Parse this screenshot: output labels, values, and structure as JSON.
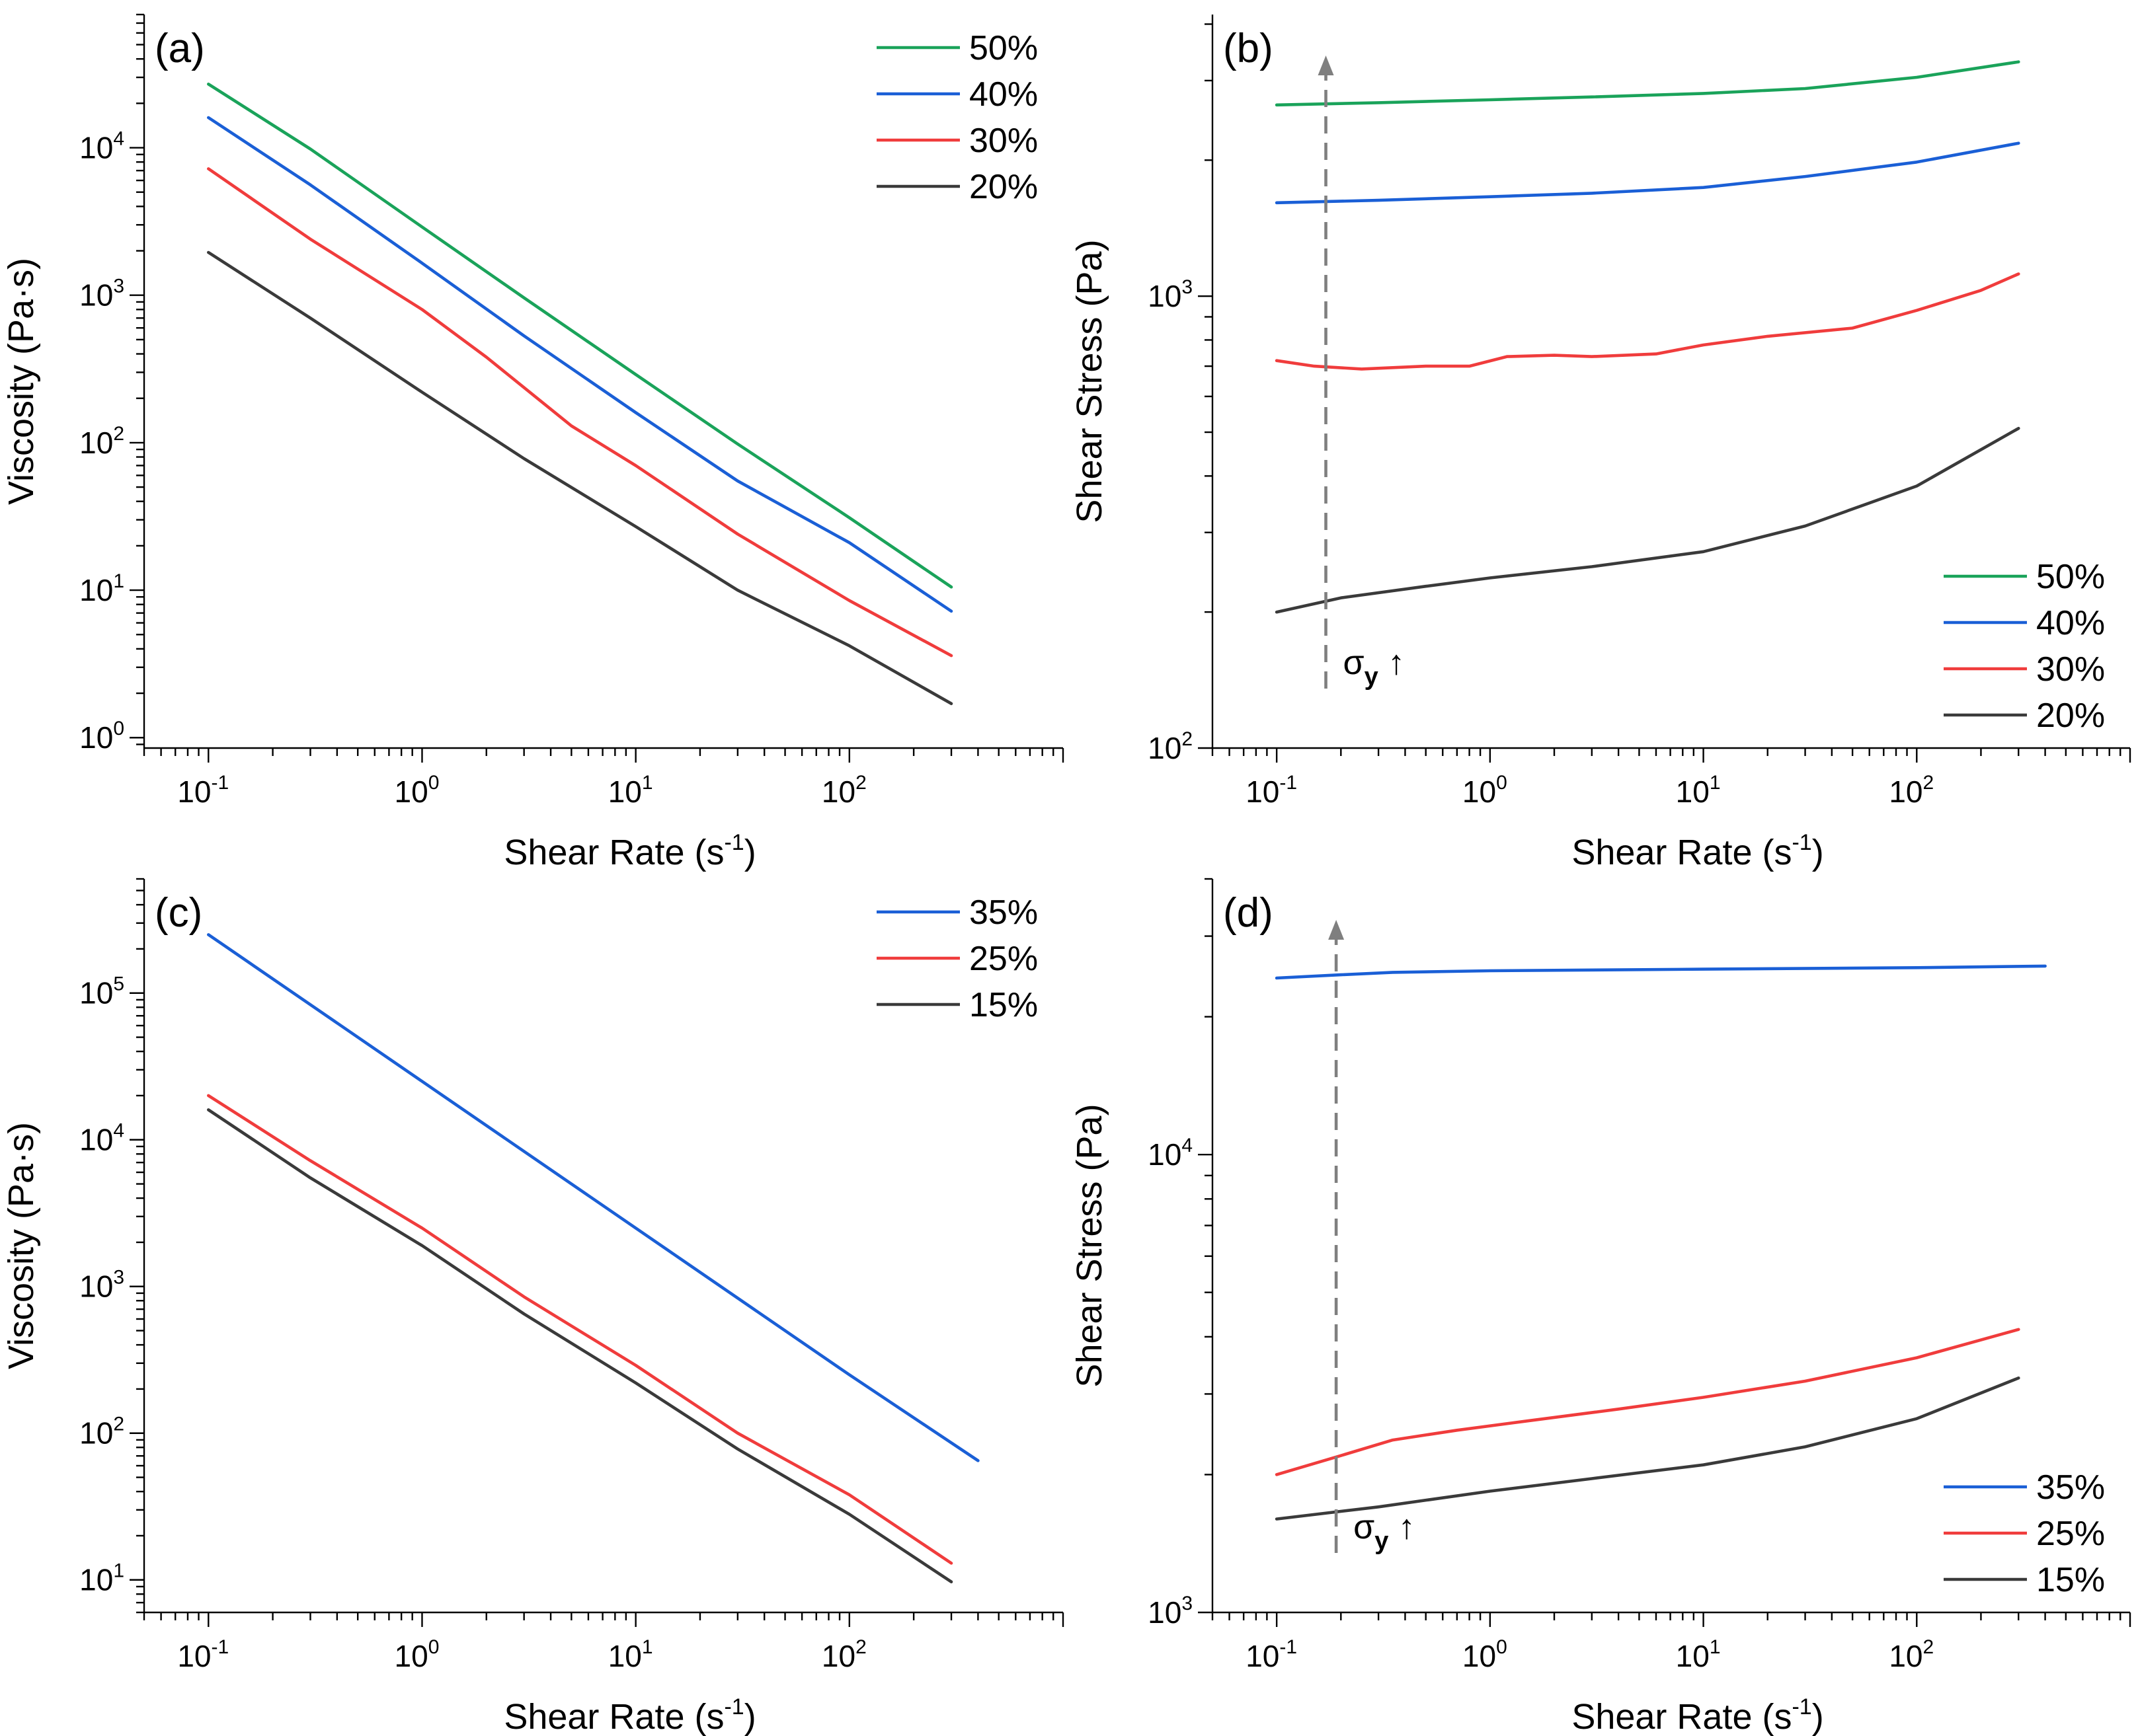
{
  "chart_data": [
    {
      "id": "a",
      "type": "line",
      "panel_label": "(a)",
      "xlabel": "Shear Rate (s",
      "xlabel_sup": "-1",
      "xlabel_tail": ")",
      "ylabel": "Viscosity (Pa·s)",
      "xscale": "log",
      "yscale": "log",
      "xlim": [
        0.05,
        1000
      ],
      "ylim": [
        0.85,
        80000
      ],
      "xticks": [
        {
          "base": "10",
          "exp": "-1",
          "value": 0.1
        },
        {
          "base": "10",
          "exp": "0",
          "value": 1
        },
        {
          "base": "10",
          "exp": "1",
          "value": 10
        },
        {
          "base": "10",
          "exp": "2",
          "value": 100
        }
      ],
      "yticks": [
        {
          "base": "10",
          "exp": "0",
          "value": 1
        },
        {
          "base": "10",
          "exp": "1",
          "value": 10
        },
        {
          "base": "10",
          "exp": "2",
          "value": 100
        },
        {
          "base": "10",
          "exp": "3",
          "value": 1000
        },
        {
          "base": "10",
          "exp": "4",
          "value": 10000
        }
      ],
      "legend_position": "top-right",
      "series": [
        {
          "name": "50%",
          "color": "#1aa35a",
          "x": [
            0.1,
            0.3,
            1,
            3,
            10,
            30,
            100,
            300
          ],
          "y": [
            27000,
            9800,
            2900,
            960,
            290,
            98,
            31,
            10.5
          ]
        },
        {
          "name": "40%",
          "color": "#1a5fd6",
          "x": [
            0.1,
            0.3,
            1,
            3,
            10,
            30,
            100,
            300
          ],
          "y": [
            16000,
            5600,
            1650,
            530,
            160,
            55,
            21,
            7.2
          ]
        },
        {
          "name": "30%",
          "color": "#f03c3c",
          "x": [
            0.1,
            0.3,
            1,
            2,
            5,
            10,
            30,
            100,
            300
          ],
          "y": [
            7200,
            2400,
            800,
            380,
            130,
            70,
            24,
            8.5,
            3.6
          ]
        },
        {
          "name": "20%",
          "color": "#3a3a3a",
          "x": [
            0.1,
            0.3,
            1,
            3,
            10,
            30,
            100,
            300
          ],
          "y": [
            1950,
            700,
            220,
            78,
            27,
            10,
            4.2,
            1.7
          ]
        }
      ]
    },
    {
      "id": "b",
      "type": "line",
      "panel_label": "(b)",
      "xlabel": "Shear Rate (s",
      "xlabel_sup": "-1",
      "xlabel_tail": ")",
      "ylabel": "Shear Stress (Pa)",
      "xscale": "log",
      "yscale": "log",
      "xlim": [
        0.05,
        1000
      ],
      "ylim": [
        100,
        4200
      ],
      "xticks": [
        {
          "base": "10",
          "exp": "-1",
          "value": 0.1
        },
        {
          "base": "10",
          "exp": "0",
          "value": 1
        },
        {
          "base": "10",
          "exp": "1",
          "value": 10
        },
        {
          "base": "10",
          "exp": "2",
          "value": 100
        }
      ],
      "yticks": [
        {
          "base": "10",
          "exp": "2",
          "value": 100
        },
        {
          "base": "10",
          "exp": "3",
          "value": 1000
        }
      ],
      "legend_position": "bottom-right",
      "annotation": {
        "symbol": "σ",
        "subscript": "y",
        "arrow": "↑",
        "x": 0.17
      },
      "series": [
        {
          "name": "50%",
          "color": "#1aa35a",
          "x": [
            0.1,
            0.3,
            1,
            3,
            10,
            30,
            100,
            300
          ],
          "y": [
            2650,
            2680,
            2720,
            2760,
            2810,
            2880,
            3050,
            3300
          ]
        },
        {
          "name": "40%",
          "color": "#1a5fd6",
          "x": [
            0.1,
            0.3,
            1,
            3,
            10,
            30,
            100,
            300
          ],
          "y": [
            1610,
            1630,
            1660,
            1690,
            1740,
            1840,
            1980,
            2180
          ]
        },
        {
          "name": "30%",
          "color": "#f03c3c",
          "x": [
            0.1,
            0.15,
            0.25,
            0.5,
            0.8,
            1.2,
            2,
            3,
            6,
            10,
            20,
            50,
            100,
            200,
            300
          ],
          "y": [
            720,
            700,
            690,
            700,
            700,
            735,
            740,
            735,
            745,
            780,
            815,
            850,
            930,
            1030,
            1120
          ]
        },
        {
          "name": "20%",
          "color": "#3a3a3a",
          "x": [
            0.1,
            0.2,
            0.5,
            1,
            3,
            10,
            30,
            100,
            300
          ],
          "y": [
            200,
            215,
            228,
            238,
            252,
            272,
            310,
            380,
            510
          ]
        }
      ]
    },
    {
      "id": "c",
      "type": "line",
      "panel_label": "(c)",
      "xlabel": "Shear Rate (s",
      "xlabel_sup": "-1",
      "xlabel_tail": ")",
      "ylabel": "Viscosity (Pa·s)",
      "xscale": "log",
      "yscale": "log",
      "xlim": [
        0.05,
        1000
      ],
      "ylim": [
        6,
        600000
      ],
      "xticks": [
        {
          "base": "10",
          "exp": "-1",
          "value": 0.1
        },
        {
          "base": "10",
          "exp": "0",
          "value": 1
        },
        {
          "base": "10",
          "exp": "1",
          "value": 10
        },
        {
          "base": "10",
          "exp": "2",
          "value": 100
        }
      ],
      "yticks": [
        {
          "base": "10",
          "exp": "1",
          "value": 10
        },
        {
          "base": "10",
          "exp": "2",
          "value": 100
        },
        {
          "base": "10",
          "exp": "3",
          "value": 1000
        },
        {
          "base": "10",
          "exp": "4",
          "value": 10000
        },
        {
          "base": "10",
          "exp": "5",
          "value": 100000
        }
      ],
      "legend_position": "top-right",
      "series": [
        {
          "name": "35%",
          "color": "#1a5fd6",
          "x": [
            0.1,
            1,
            10,
            100,
            400
          ],
          "y": [
            250000,
            25000,
            2500,
            250,
            65
          ]
        },
        {
          "name": "25%",
          "color": "#f03c3c",
          "x": [
            0.1,
            0.3,
            1,
            3,
            10,
            30,
            100,
            300
          ],
          "y": [
            20000,
            7200,
            2500,
            850,
            290,
            100,
            38,
            13
          ]
        },
        {
          "name": "15%",
          "color": "#3a3a3a",
          "x": [
            0.1,
            0.3,
            1,
            3,
            10,
            30,
            100,
            300
          ],
          "y": [
            16000,
            5500,
            1900,
            650,
            220,
            78,
            28,
            9.7
          ]
        }
      ]
    },
    {
      "id": "d",
      "type": "line",
      "panel_label": "(d)",
      "xlabel": "Shear Rate (s",
      "xlabel_sup": "-1",
      "xlabel_tail": ")",
      "ylabel": "Shear Stress (Pa)",
      "xscale": "log",
      "yscale": "log",
      "xlim": [
        0.05,
        1000
      ],
      "ylim": [
        1000,
        40000
      ],
      "xticks": [
        {
          "base": "10",
          "exp": "-1",
          "value": 0.1
        },
        {
          "base": "10",
          "exp": "0",
          "value": 1
        },
        {
          "base": "10",
          "exp": "1",
          "value": 10
        },
        {
          "base": "10",
          "exp": "2",
          "value": 100
        }
      ],
      "yticks": [
        {
          "base": "10",
          "exp": "3",
          "value": 1000
        },
        {
          "base": "10",
          "exp": "4",
          "value": 10000
        }
      ],
      "legend_position": "bottom-right",
      "annotation": {
        "symbol": "σ",
        "subscript": "y",
        "arrow": "↑",
        "x": 0.19
      },
      "series": [
        {
          "name": "35%",
          "color": "#1a5fd6",
          "x": [
            0.1,
            0.2,
            0.35,
            1,
            10,
            100,
            400
          ],
          "y": [
            24300,
            24700,
            25000,
            25200,
            25400,
            25600,
            25800
          ]
        },
        {
          "name": "25%",
          "color": "#f03c3c",
          "x": [
            0.1,
            0.2,
            0.35,
            0.7,
            1.5,
            4,
            10,
            30,
            100,
            300
          ],
          "y": [
            2000,
            2200,
            2380,
            2500,
            2620,
            2780,
            2950,
            3200,
            3600,
            4150
          ]
        },
        {
          "name": "15%",
          "color": "#3a3a3a",
          "x": [
            0.1,
            0.3,
            1,
            3,
            10,
            30,
            100,
            300
          ],
          "y": [
            1600,
            1700,
            1840,
            1960,
            2100,
            2300,
            2650,
            3250
          ]
        }
      ]
    }
  ]
}
